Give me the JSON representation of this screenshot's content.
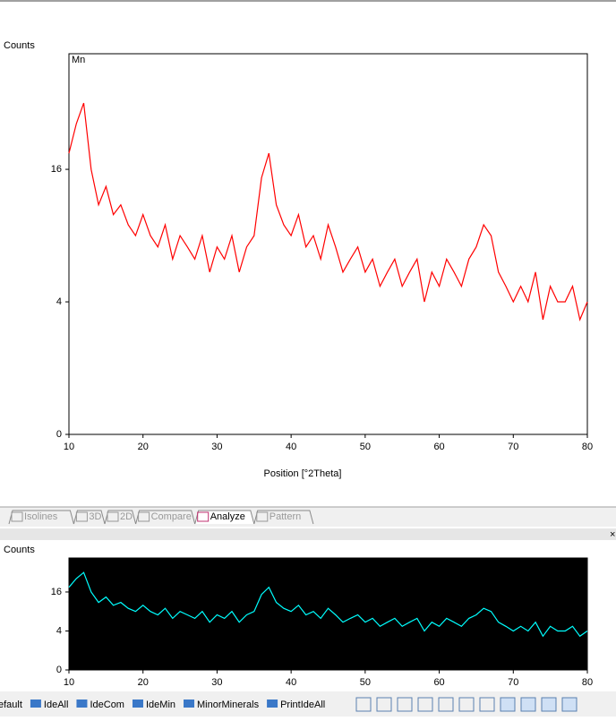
{
  "main_chart": {
    "type": "line",
    "y_label": "Counts",
    "annotation": "Mn",
    "x_label": "Position [°2Theta]",
    "x": [
      10,
      11,
      12,
      13,
      14,
      15,
      16,
      17,
      18,
      19,
      20,
      21,
      22,
      23,
      24,
      25,
      26,
      27,
      28,
      29,
      30,
      31,
      32,
      33,
      34,
      35,
      36,
      37,
      38,
      39,
      40,
      41,
      42,
      43,
      44,
      45,
      46,
      47,
      48,
      49,
      50,
      51,
      52,
      53,
      54,
      55,
      56,
      57,
      58,
      59,
      60,
      61,
      62,
      63,
      64,
      65,
      66,
      67,
      68,
      69,
      70,
      71,
      72,
      73,
      74,
      75,
      76,
      77,
      78,
      79,
      80
    ],
    "series": [
      {
        "color": "#ff0000",
        "values": [
          18,
          22,
          25,
          16,
          12,
          14,
          11,
          12,
          10,
          9,
          11,
          9,
          8,
          10,
          7,
          9,
          8,
          7,
          9,
          6,
          8,
          7,
          9,
          6,
          8,
          9,
          15,
          18,
          12,
          10,
          9,
          11,
          8,
          9,
          7,
          10,
          8,
          6,
          7,
          8,
          6,
          7,
          5,
          6,
          7,
          5,
          6,
          7,
          4,
          6,
          5,
          7,
          6,
          5,
          7,
          8,
          10,
          9,
          6,
          5,
          4,
          5,
          4,
          6,
          3,
          5,
          4,
          4,
          5,
          3,
          4
        ]
      }
    ],
    "xlim": [
      10,
      80
    ],
    "xticks": [
      10,
      20,
      30,
      40,
      50,
      60,
      70,
      80
    ],
    "ylim": [
      0,
      33
    ],
    "yticks": [
      0,
      4,
      16
    ],
    "y_scale": "sqrt"
  },
  "overview_chart": {
    "type": "line",
    "y_label": "Counts",
    "background": "#000000",
    "color": "#00ffff",
    "xlim": [
      10,
      80
    ],
    "xticks": [
      10,
      20,
      30,
      40,
      50,
      60,
      70,
      80
    ],
    "ylim": [
      0,
      33
    ],
    "yticks": [
      0,
      4,
      16
    ],
    "y_scale": "sqrt"
  },
  "tabs": [
    "Isolines",
    "3D",
    "2D",
    "Compare",
    "Analyze",
    "Pattern"
  ],
  "toolbar": [
    "efault",
    "IdeAll",
    "IdeCom",
    "IdeMin",
    "MinorMinerals",
    "PrintIdeAll"
  ]
}
